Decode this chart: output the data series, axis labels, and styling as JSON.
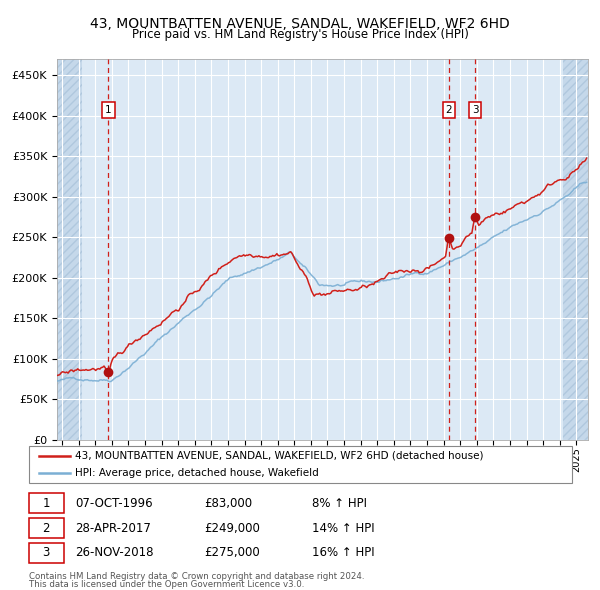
{
  "title1": "43, MOUNTBATTEN AVENUE, SANDAL, WAKEFIELD, WF2 6HD",
  "title2": "Price paid vs. HM Land Registry's House Price Index (HPI)",
  "legend_line1": "43, MOUNTBATTEN AVENUE, SANDAL, WAKEFIELD, WF2 6HD (detached house)",
  "legend_line2": "HPI: Average price, detached house, Wakefield",
  "transaction1_date": "07-OCT-1996",
  "transaction1_price": 83000,
  "transaction1_hpi": "8% ↑ HPI",
  "transaction1_year": 1996.79,
  "transaction2_date": "28-APR-2017",
  "transaction2_price": 249000,
  "transaction2_hpi": "14% ↑ HPI",
  "transaction2_year": 2017.32,
  "transaction3_date": "26-NOV-2018",
  "transaction3_price": 275000,
  "transaction3_hpi": "16% ↑ HPI",
  "transaction3_year": 2018.9,
  "footnote1": "Contains HM Land Registry data © Crown copyright and database right 2024.",
  "footnote2": "This data is licensed under the Open Government Licence v3.0.",
  "hpi_color": "#7bafd4",
  "price_color": "#d0201a",
  "marker_color": "#b01010",
  "dashed_line_color": "#d0201a",
  "background_plot": "#dce9f5",
  "background_hatch": "#c5d8ea",
  "grid_color": "#ffffff",
  "ylim": [
    0,
    470000
  ],
  "xlim_start": 1993.7,
  "xlim_end": 2025.7,
  "hatch_left_end": 1995.2,
  "hatch_right_start": 2024.2
}
